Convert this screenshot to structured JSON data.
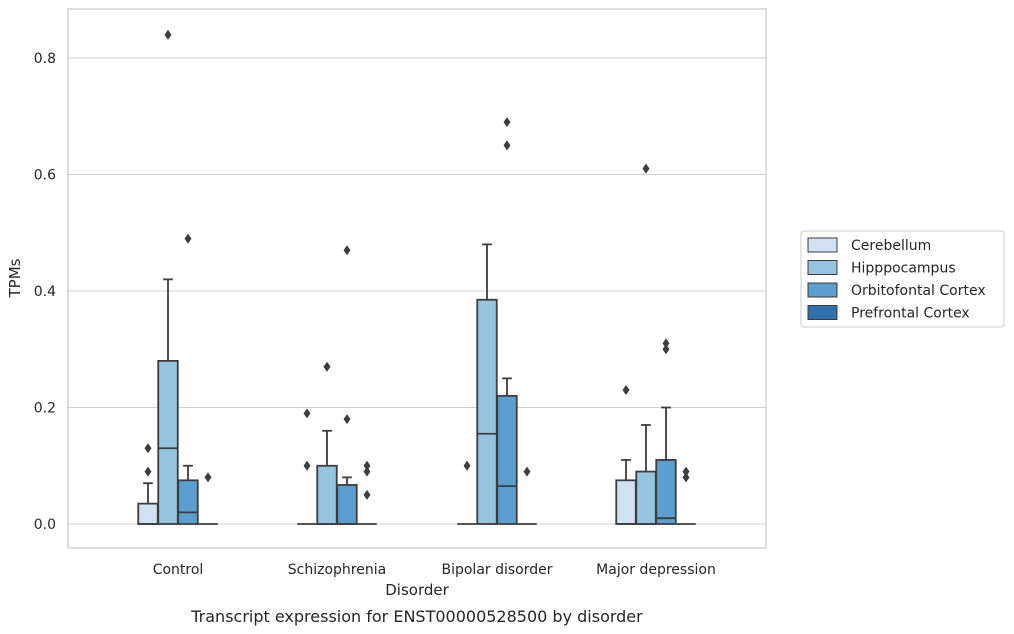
{
  "chart_data": {
    "type": "boxplot",
    "caption": "Transcript expression for ENST00000528500 by disorder",
    "xlabel": "Disorder",
    "ylabel": "TPMs",
    "ylim": [
      -0.04,
      0.885
    ],
    "yticks": [
      0.0,
      0.2,
      0.4,
      0.6,
      0.8
    ],
    "ytick_labels": [
      "0.0",
      "0.2",
      "0.4",
      "0.6",
      "0.8"
    ],
    "grid": "horizontal",
    "legend_position": "right",
    "categories": [
      "Control",
      "Schizophrenia",
      "Bipolar disorder",
      "Major depression"
    ],
    "series": [
      {
        "name": "Cerebellum",
        "color": "#d0e1f2",
        "boxes": [
          {
            "q1": 0.0,
            "median": 0.0,
            "q3": 0.035,
            "whisker_low": 0.0,
            "whisker_high": 0.07,
            "outliers": [
              0.09,
              0.13
            ]
          },
          {
            "q1": 0.0,
            "median": 0.0,
            "q3": 0.0,
            "whisker_low": 0.0,
            "whisker_high": 0.0,
            "outliers": [
              0.1,
              0.19
            ]
          },
          {
            "q1": 0.0,
            "median": 0.0,
            "q3": 0.0,
            "whisker_low": 0.0,
            "whisker_high": 0.0,
            "outliers": [
              0.1
            ]
          },
          {
            "q1": 0.0,
            "median": 0.0,
            "q3": 0.075,
            "whisker_low": 0.0,
            "whisker_high": 0.11,
            "outliers": [
              0.23
            ]
          }
        ]
      },
      {
        "name": "Hipppocampus",
        "color": "#94c4df",
        "boxes": [
          {
            "q1": 0.0,
            "median": 0.13,
            "q3": 0.28,
            "whisker_low": 0.0,
            "whisker_high": 0.42,
            "outliers": [
              0.84
            ]
          },
          {
            "q1": 0.0,
            "median": 0.0,
            "q3": 0.1,
            "whisker_low": 0.0,
            "whisker_high": 0.16,
            "outliers": [
              0.27
            ]
          },
          {
            "q1": 0.0,
            "median": 0.155,
            "q3": 0.385,
            "whisker_low": 0.0,
            "whisker_high": 0.48,
            "outliers": []
          },
          {
            "q1": 0.0,
            "median": 0.0,
            "q3": 0.09,
            "whisker_low": 0.0,
            "whisker_high": 0.17,
            "outliers": [
              0.61
            ]
          }
        ]
      },
      {
        "name": "Orbitofontal Cortex",
        "color": "#5a9fcd",
        "boxes": [
          {
            "q1": 0.0,
            "median": 0.02,
            "q3": 0.075,
            "whisker_low": 0.0,
            "whisker_high": 0.1,
            "outliers": [
              0.49
            ]
          },
          {
            "q1": 0.0,
            "median": 0.0,
            "q3": 0.067,
            "whisker_low": 0.0,
            "whisker_high": 0.08,
            "outliers": [
              0.18,
              0.47
            ]
          },
          {
            "q1": 0.0,
            "median": 0.065,
            "q3": 0.22,
            "whisker_low": 0.0,
            "whisker_high": 0.25,
            "outliers": [
              0.65,
              0.69
            ]
          },
          {
            "q1": 0.0,
            "median": 0.01,
            "q3": 0.11,
            "whisker_low": 0.0,
            "whisker_high": 0.2,
            "outliers": [
              0.3,
              0.31
            ]
          }
        ]
      },
      {
        "name": "Prefrontal Cortex",
        "color": "#2f6fad",
        "boxes": [
          {
            "q1": 0.0,
            "median": 0.0,
            "q3": 0.0,
            "whisker_low": 0.0,
            "whisker_high": 0.0,
            "outliers": [
              0.08
            ]
          },
          {
            "q1": 0.0,
            "median": 0.0,
            "q3": 0.0,
            "whisker_low": 0.0,
            "whisker_high": 0.0,
            "outliers": [
              0.05,
              0.09,
              0.1
            ]
          },
          {
            "q1": 0.0,
            "median": 0.0,
            "q3": 0.0,
            "whisker_low": 0.0,
            "whisker_high": 0.0,
            "outliers": [
              0.09
            ]
          },
          {
            "q1": 0.0,
            "median": 0.0,
            "q3": 0.0,
            "whisker_low": 0.0,
            "whisker_high": 0.0,
            "outliers": [
              0.08,
              0.09
            ]
          }
        ]
      }
    ]
  }
}
